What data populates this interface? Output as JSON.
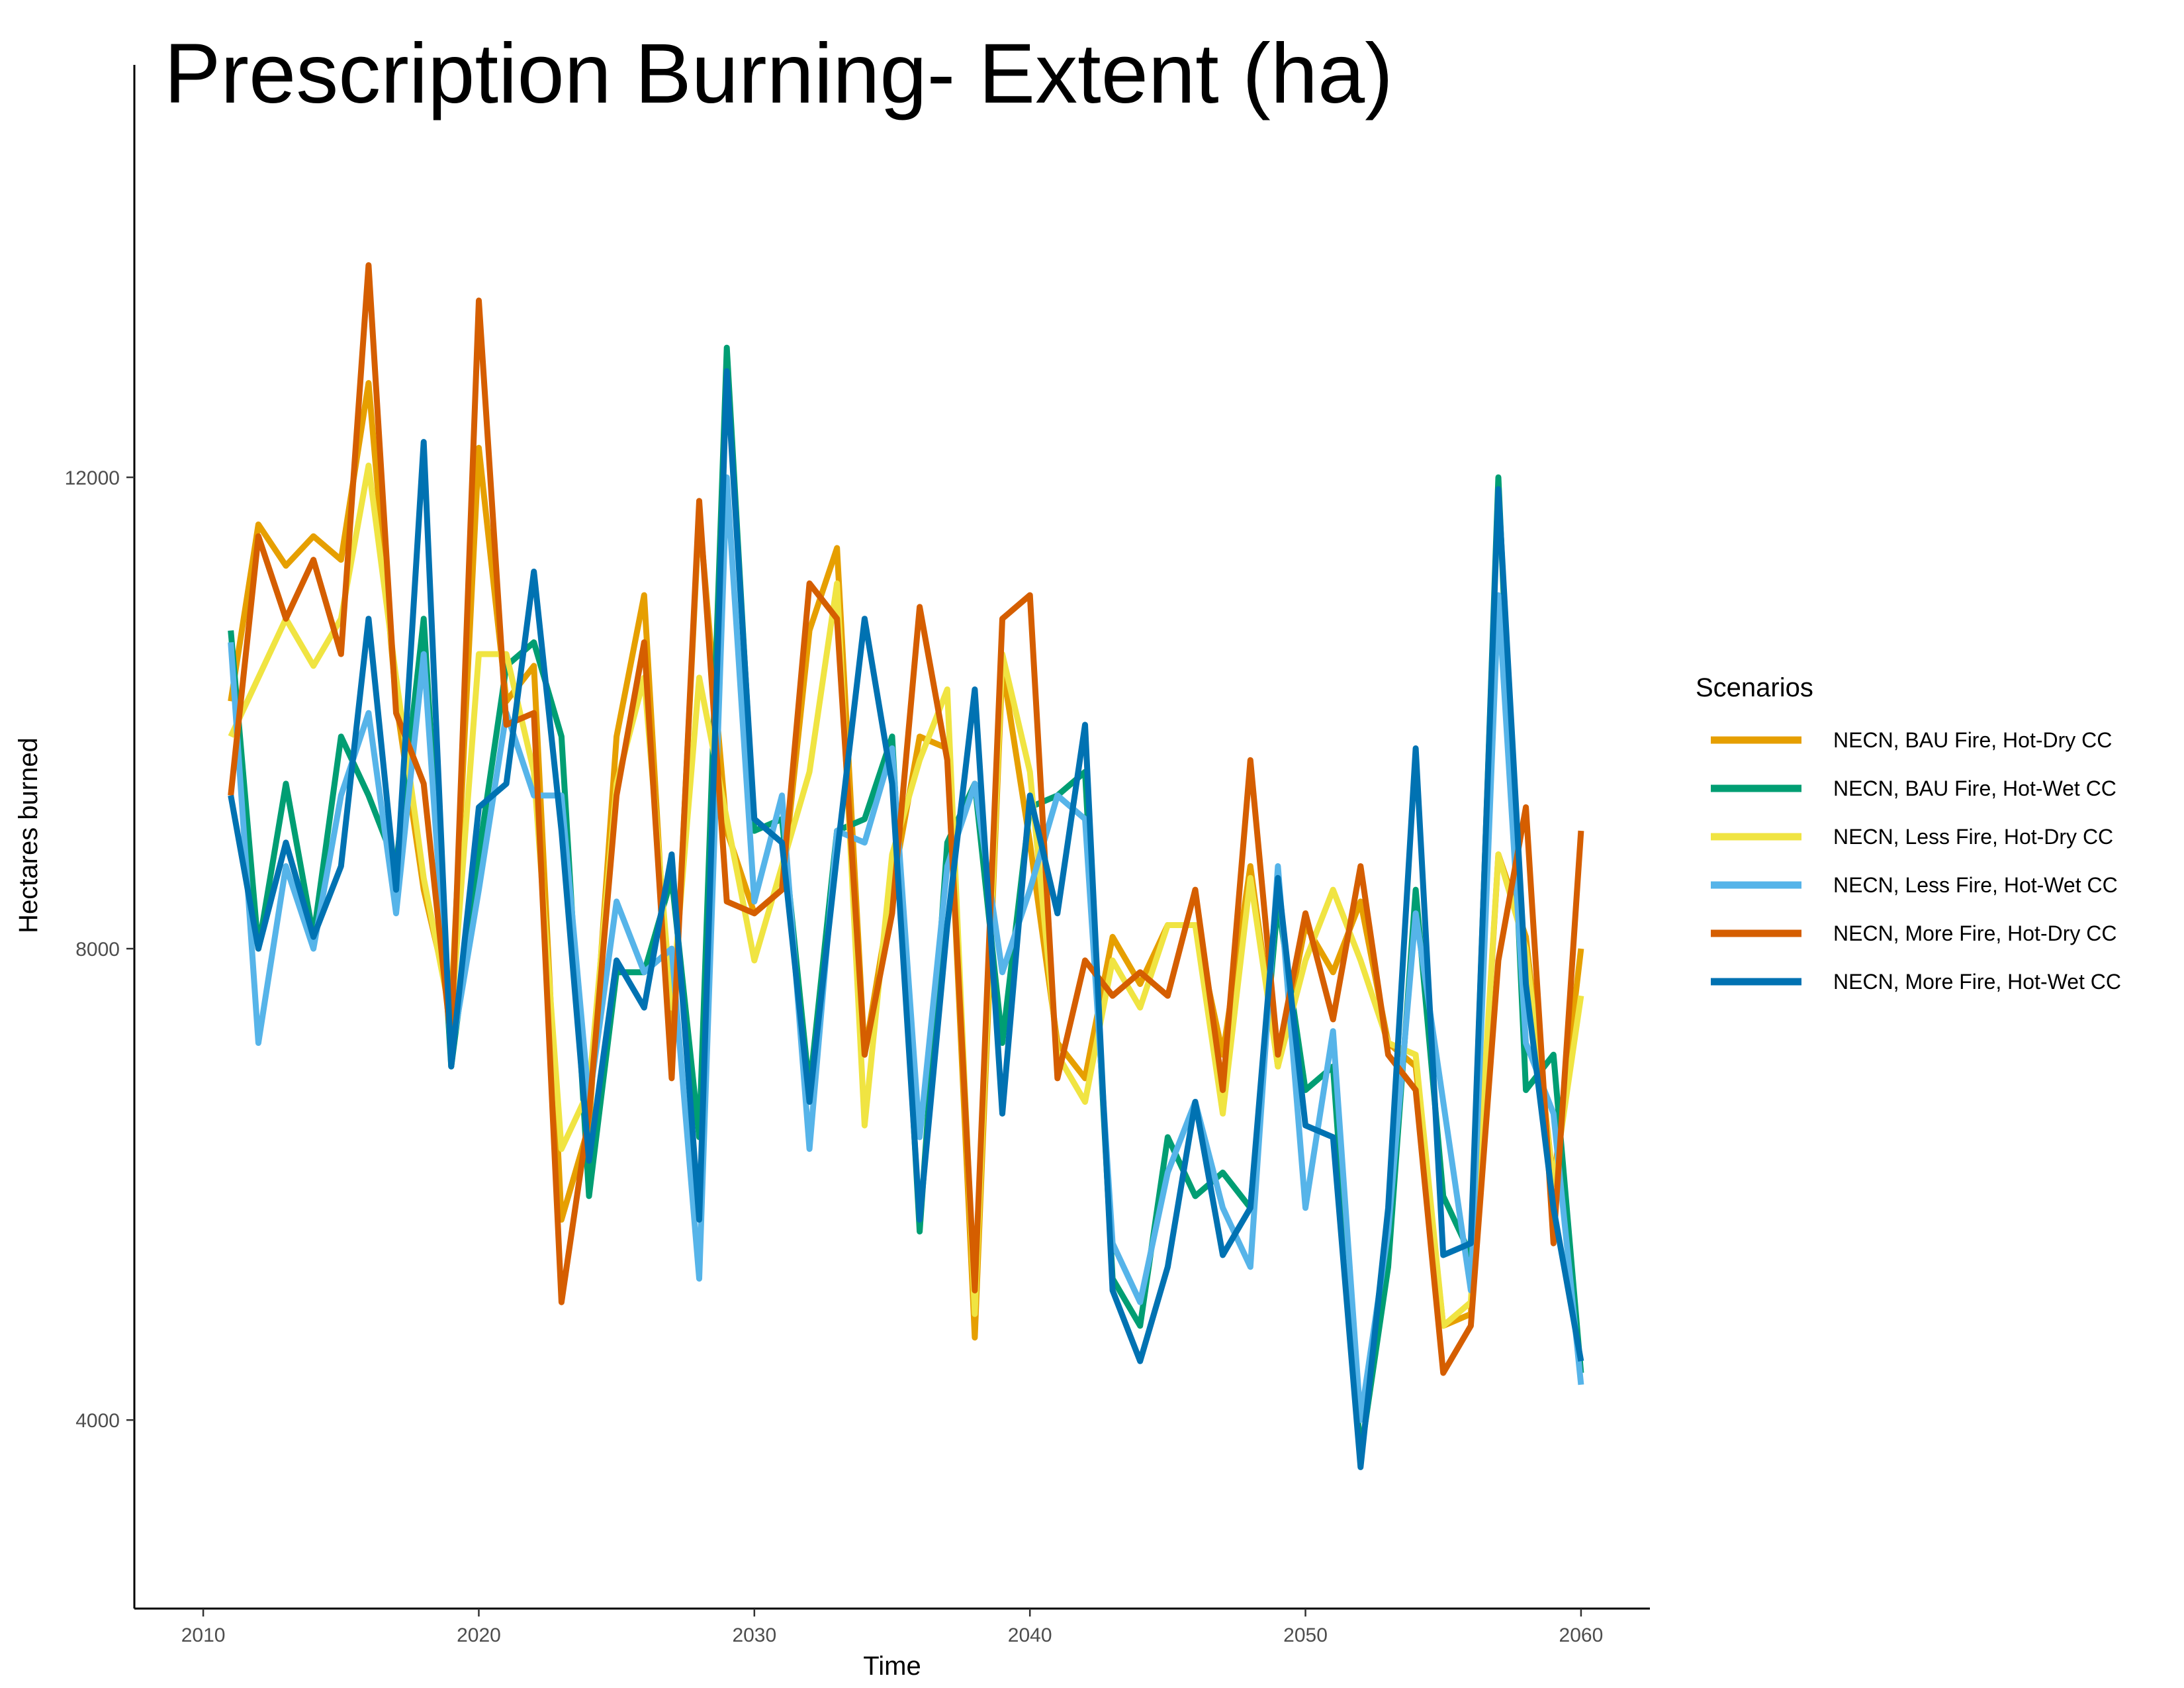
{
  "chart_data": {
    "type": "line",
    "title": "Prescription Burning- Extent (ha)",
    "xlabel": "Time",
    "ylabel": "Hectares burned",
    "xlim": [
      2007.5,
      2062.5
    ],
    "ylim": [
      2400,
      15500
    ],
    "x_ticks": [
      2010,
      2020,
      2030,
      2040,
      2050,
      2060
    ],
    "y_ticks": [
      4000,
      8000,
      12000
    ],
    "grid": false,
    "legend": {
      "title": "Scenarios",
      "position": "right"
    },
    "x": [
      2011,
      2012,
      2013,
      2014,
      2015,
      2016,
      2017,
      2018,
      2019,
      2020,
      2021,
      2022,
      2023,
      2024,
      2025,
      2026,
      2027,
      2028,
      2029,
      2030,
      2031,
      2032,
      2033,
      2034,
      2035,
      2036,
      2037,
      2038,
      2039,
      2040,
      2041,
      2042,
      2043,
      2044,
      2045,
      2046,
      2047,
      2048,
      2049,
      2050,
      2051,
      2052,
      2053,
      2054,
      2055,
      2056,
      2057,
      2058,
      2059,
      2060
    ],
    "series": [
      {
        "name": "NECN, BAU Fire, Hot-Dry CC",
        "color": "#E69F00",
        "values": [
          10100,
          11600,
          11250,
          11500,
          11300,
          12800,
          10100,
          8500,
          7500,
          12250,
          10100,
          10400,
          5700,
          6500,
          9800,
          11000,
          7000,
          11700,
          9000,
          8300,
          8500,
          10700,
          11400,
          7100,
          8500,
          9800,
          9700,
          4700,
          10400,
          8900,
          7200,
          6900,
          8100,
          7700,
          8200,
          8200,
          7100,
          8700,
          7000,
          8200,
          7800,
          8400,
          7200,
          7000,
          4800,
          4900,
          8800,
          8100,
          6000,
          8000
        ]
      },
      {
        "name": "NECN, BAU Fire, Hot-Wet CC",
        "color": "#009E73",
        "values": [
          10700,
          8000,
          9400,
          8100,
          9800,
          9300,
          8700,
          10800,
          7000,
          8800,
          10400,
          10600,
          9800,
          5900,
          7800,
          7800,
          8600,
          6400,
          13100,
          9000,
          9100,
          6800,
          9000,
          9100,
          9800,
          5600,
          8900,
          9400,
          7200,
          9200,
          9300,
          9500,
          5200,
          4800,
          6400,
          5900,
          6100,
          5800,
          8400,
          6800,
          7000,
          3700,
          5300,
          8500,
          5900,
          5400,
          12000,
          6800,
          7100,
          4400
        ]
      },
      {
        "name": "NECN, Less Fire, Hot-Dry CC",
        "color": "#F0E442",
        "values": [
          9800,
          10300,
          10800,
          10400,
          10800,
          12100,
          10300,
          8600,
          7400,
          10500,
          10500,
          9500,
          6300,
          6800,
          9400,
          10300,
          7500,
          10300,
          9100,
          7900,
          8700,
          9500,
          11100,
          6500,
          8800,
          9600,
          10200,
          4900,
          10500,
          9500,
          7100,
          6700,
          7900,
          7500,
          8200,
          8200,
          6600,
          8600,
          7000,
          7900,
          8500,
          7900,
          7200,
          7100,
          4800,
          5000,
          8800,
          8000,
          6000,
          7600
        ]
      },
      {
        "name": "NECN, Less Fire, Hot-Wet CC",
        "color": "#56B4E9",
        "values": [
          10600,
          7200,
          8700,
          8000,
          9300,
          10000,
          8300,
          10500,
          7100,
          8500,
          10000,
          9300,
          9300,
          6700,
          8400,
          7800,
          8000,
          5200,
          12000,
          8400,
          9300,
          6300,
          9000,
          8900,
          9700,
          6400,
          8700,
          9400,
          7800,
          8500,
          9300,
          9100,
          5500,
          5000,
          6100,
          6700,
          5800,
          5300,
          8700,
          5800,
          7300,
          4000,
          5600,
          8300,
          6700,
          5100,
          11000,
          7200,
          6600,
          4300
        ]
      },
      {
        "name": "NECN, More Fire, Hot-Dry CC",
        "color": "#D55E00",
        "values": [
          9300,
          11500,
          10800,
          11300,
          10500,
          13800,
          10000,
          9400,
          7200,
          13500,
          9900,
          10000,
          5000,
          6600,
          9300,
          10600,
          6900,
          11800,
          8400,
          8300,
          8500,
          11100,
          10800,
          7100,
          8300,
          10900,
          9600,
          5100,
          10800,
          11000,
          6900,
          7900,
          7600,
          7800,
          7600,
          8500,
          6800,
          9600,
          7100,
          8300,
          7400,
          8700,
          7100,
          6800,
          4400,
          4800,
          7900,
          9200,
          5500,
          9000
        ]
      },
      {
        "name": "NECN, More Fire, Hot-Wet CC",
        "color": "#0072B2",
        "values": [
          9300,
          8000,
          8900,
          8100,
          8700,
          10800,
          8500,
          12300,
          7000,
          9200,
          9400,
          11200,
          9000,
          6200,
          7900,
          7500,
          8800,
          5700,
          12900,
          9100,
          8900,
          6700,
          8800,
          10800,
          9400,
          5700,
          8200,
          10200,
          6600,
          9300,
          8300,
          9900,
          5100,
          4500,
          5300,
          6700,
          5400,
          5800,
          8600,
          6500,
          6400,
          3600,
          5800,
          9700,
          5400,
          5500,
          11900,
          7700,
          5800,
          4500
        ]
      }
    ]
  }
}
